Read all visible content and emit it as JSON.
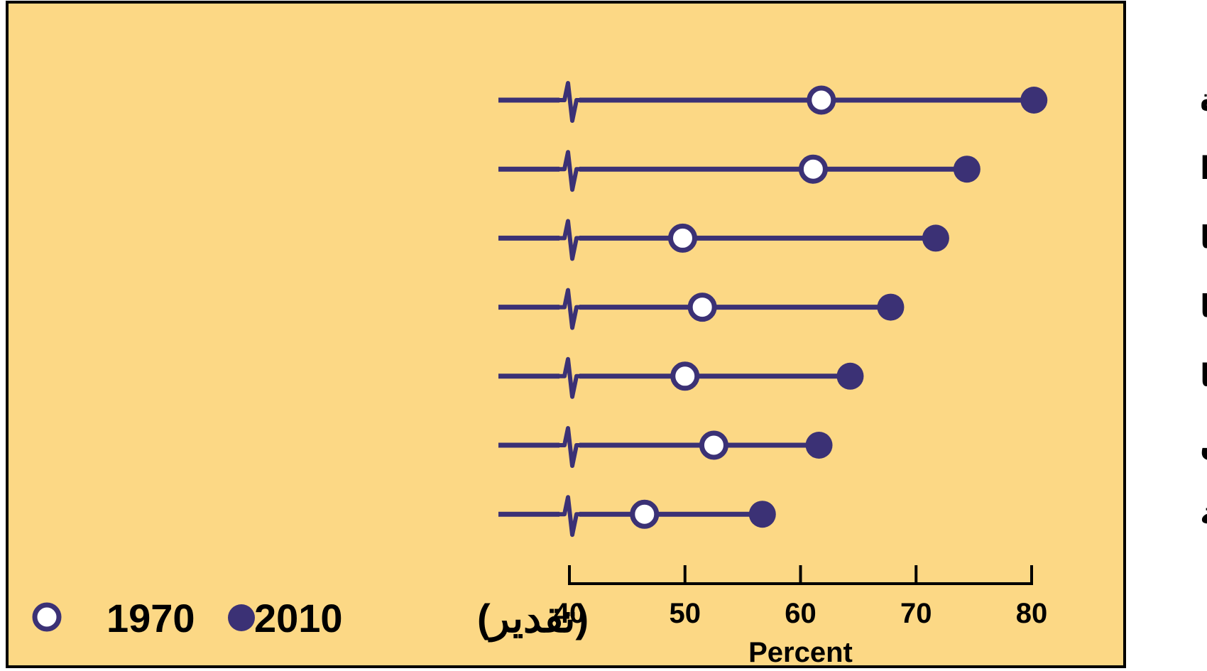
{
  "colors": {
    "background": "#fcd885",
    "border": "#000000",
    "series": "#3b3175",
    "open_fill": "#ffffff",
    "text": "#000000"
  },
  "chart_data": {
    "type": "dumbbell",
    "xlabel": "Percent",
    "xlim": [
      40,
      80
    ],
    "x_ticks": [
      "40",
      "50",
      "60",
      "70",
      "80"
    ],
    "axis_break": true,
    "categories": [
      "الولايات المتحدة",
      "كندا",
      "فرنسا",
      "إيطاليا",
      "بريطانيا",
      "اليابان",
      "المانيا الغربية"
    ],
    "series": [
      {
        "name": "1970",
        "marker": "open-circle",
        "values": [
          61.8,
          61.1,
          49.8,
          51.5,
          50.0,
          52.5,
          46.5
        ]
      },
      {
        "name": "2010",
        "marker": "filled-circle",
        "values": [
          80.2,
          74.4,
          71.7,
          67.8,
          64.3,
          61.6,
          56.7
        ]
      }
    ],
    "legend": {
      "position": "bottom-left",
      "items": [
        {
          "label": "1970",
          "marker": "open-circle"
        },
        {
          "label": "2010",
          "marker": "filled-circle"
        }
      ],
      "note": "(تقدير)"
    }
  }
}
